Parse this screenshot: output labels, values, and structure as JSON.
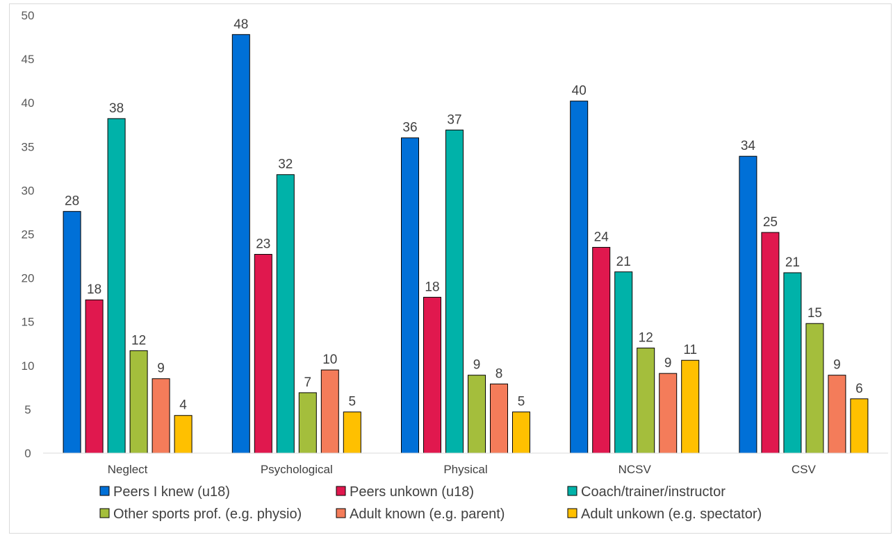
{
  "chart_data": {
    "type": "bar",
    "title": "",
    "xlabel": "",
    "ylabel": "",
    "ylim": [
      0,
      50
    ],
    "yticks": [
      0,
      5,
      10,
      15,
      20,
      25,
      30,
      35,
      40,
      45,
      50
    ],
    "grid": false,
    "legend_position": "bottom",
    "categories": [
      "Neglect",
      "Psychological",
      "Physical",
      "NCSV",
      "CSV"
    ],
    "series": [
      {
        "name": "Peers I knew (u18)",
        "color": "#0070d7",
        "values": [
          27.6,
          47.8,
          36.0,
          40.2,
          33.9
        ],
        "labels": [
          "28",
          "48",
          "36",
          "40",
          "34"
        ]
      },
      {
        "name": "Peers unkown (u18)",
        "color": "#e0184e",
        "values": [
          17.5,
          22.7,
          17.8,
          23.5,
          25.2
        ],
        "labels": [
          "18",
          "23",
          "18",
          "24",
          "25"
        ]
      },
      {
        "name": "Coach/trainer/instructor",
        "color": "#00b2a9",
        "values": [
          38.2,
          31.8,
          36.9,
          20.7,
          20.6
        ],
        "labels": [
          "38",
          "32",
          "37",
          "21",
          "21"
        ]
      },
      {
        "name": "Other sports prof. (e.g. physio)",
        "color": "#a4be3c",
        "values": [
          11.7,
          6.9,
          8.9,
          12.0,
          14.8
        ],
        "labels": [
          "12",
          "7",
          "9",
          "12",
          "15"
        ]
      },
      {
        "name": "Adult known (e.g. parent)",
        "color": "#f47c5a",
        "values": [
          8.5,
          9.5,
          7.9,
          9.1,
          8.9
        ],
        "labels": [
          "9",
          "10",
          "8",
          "9",
          "9"
        ]
      },
      {
        "name": "Adult unkown (e.g. spectator)",
        "color": "#ffc000",
        "values": [
          4.3,
          4.7,
          4.7,
          10.6,
          6.2
        ],
        "labels": [
          "4",
          "5",
          "5",
          "11",
          "6"
        ]
      }
    ]
  }
}
